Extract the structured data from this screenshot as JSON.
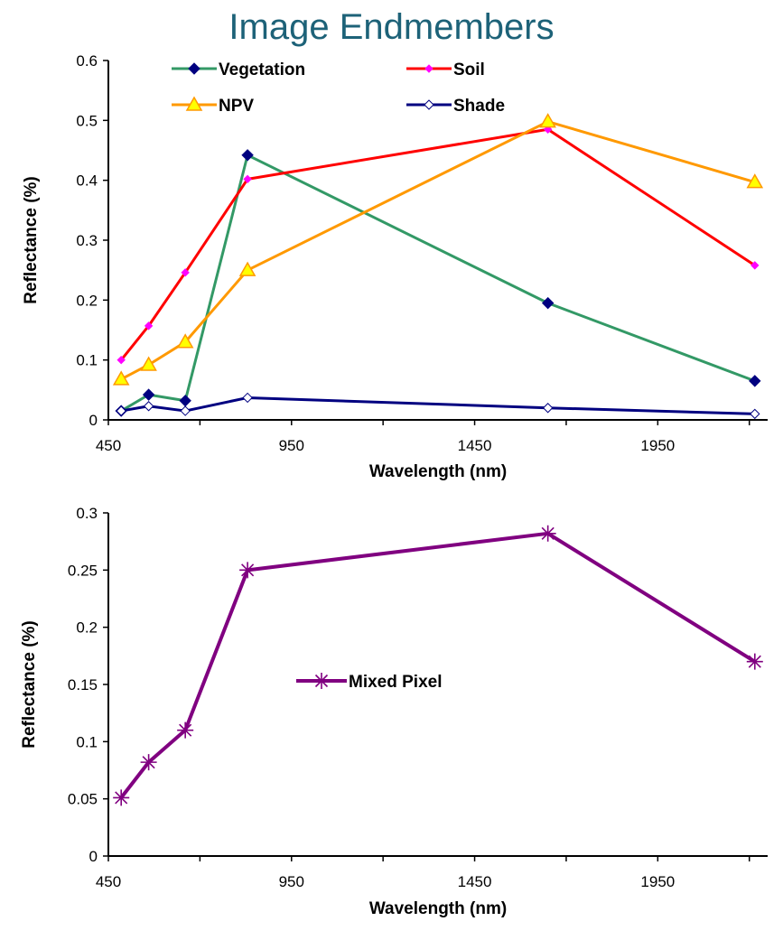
{
  "title": "Image Endmembers",
  "chart_data": [
    {
      "type": "line",
      "xlabel": "Wavelength (nm)",
      "ylabel": "Reflectance (%)",
      "xlim": [
        450,
        2250
      ],
      "ylim": [
        0,
        0.6
      ],
      "xticks": [
        "450",
        "950",
        "1450",
        "1950"
      ],
      "yticks": [
        "0",
        "0.1",
        "0.2",
        "0.3",
        "0.4",
        "0.5",
        "0.6"
      ],
      "legend": "top",
      "series": [
        {
          "name": "Vegetation",
          "color": "#339966",
          "marker": "diamond",
          "x": [
            485,
            560,
            660,
            830,
            1650,
            2215
          ],
          "y": [
            0.015,
            0.042,
            0.032,
            0.442,
            0.195,
            0.065
          ]
        },
        {
          "name": "Soil",
          "color": "#ff0000",
          "marker": "small-diamond-pink",
          "x": [
            485,
            560,
            660,
            830,
            1650,
            2215
          ],
          "y": [
            0.1,
            0.157,
            0.246,
            0.402,
            0.485,
            0.258
          ]
        },
        {
          "name": "NPV",
          "color": "#ff9900",
          "marker": "triangle",
          "x": [
            485,
            560,
            660,
            830,
            1650,
            2215
          ],
          "y": [
            0.068,
            0.092,
            0.13,
            0.25,
            0.498,
            0.397
          ]
        },
        {
          "name": "Shade",
          "color": "#000080",
          "marker": "open-diamond",
          "x": [
            485,
            560,
            660,
            830,
            1650,
            2215
          ],
          "y": [
            0.015,
            0.023,
            0.015,
            0.037,
            0.02,
            0.01
          ]
        }
      ]
    },
    {
      "type": "line",
      "xlabel": "Wavelength (nm)",
      "ylabel": "Reflectance (%)",
      "xlim": [
        450,
        2250
      ],
      "ylim": [
        0,
        0.3
      ],
      "xticks": [
        "450",
        "950",
        "1450",
        "1950"
      ],
      "yticks": [
        "0",
        "0.05",
        "0.1",
        "0.15",
        "0.2",
        "0.25",
        "0.3"
      ],
      "legend": "center",
      "series": [
        {
          "name": "Mixed Pixel",
          "color": "#800080",
          "marker": "star",
          "x": [
            485,
            560,
            660,
            830,
            1650,
            2215
          ],
          "y": [
            0.051,
            0.082,
            0.11,
            0.25,
            0.282,
            0.17
          ]
        }
      ]
    }
  ]
}
